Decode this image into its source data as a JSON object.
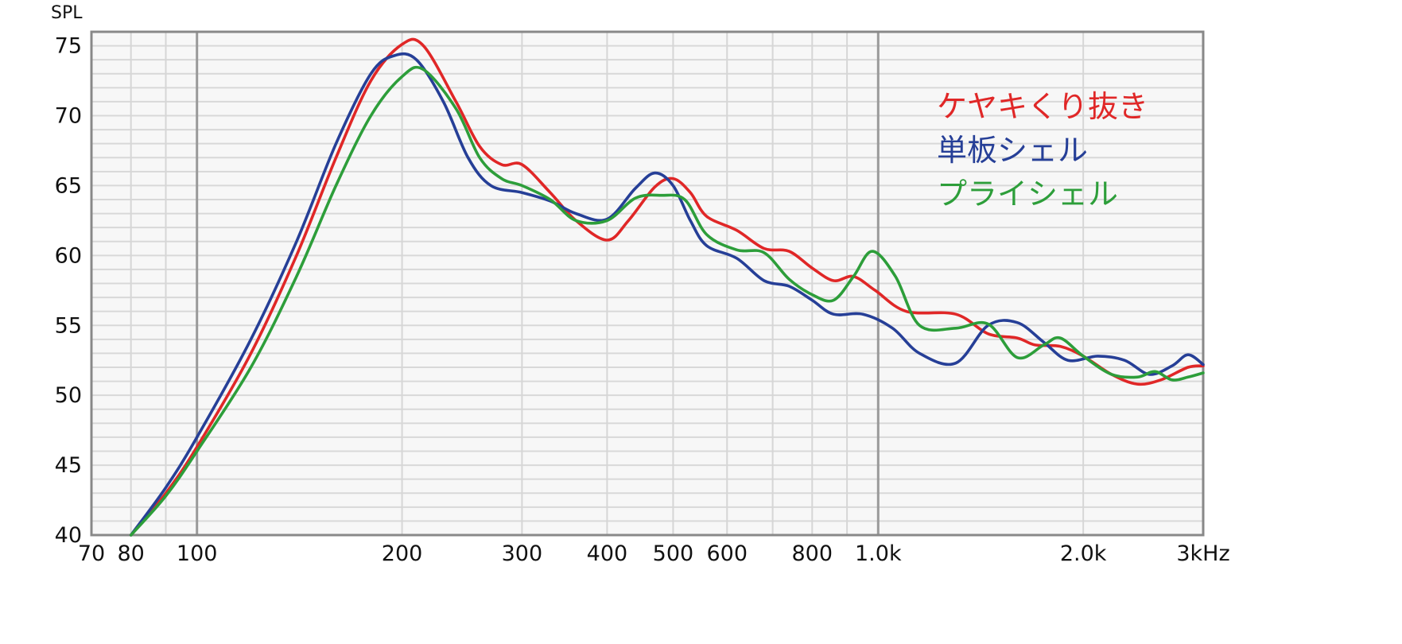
{
  "chart_data": {
    "type": "line",
    "ylabel": "SPL",
    "x_scale": "log",
    "xlim": [
      70,
      3000
    ],
    "ylim": [
      40,
      76
    ],
    "grid": true,
    "legend_position": "top-right",
    "x_ticks": [
      {
        "value": 70,
        "label": "70"
      },
      {
        "value": 80,
        "label": "80"
      },
      {
        "value": 100,
        "label": "100"
      },
      {
        "value": 200,
        "label": "200"
      },
      {
        "value": 300,
        "label": "300"
      },
      {
        "value": 400,
        "label": "400"
      },
      {
        "value": 500,
        "label": "500"
      },
      {
        "value": 600,
        "label": "600"
      },
      {
        "value": 800,
        "label": "800"
      },
      {
        "value": 1000,
        "label": "1.0k"
      },
      {
        "value": 2000,
        "label": "2.0k"
      },
      {
        "value": 3000,
        "label": "3kHz"
      }
    ],
    "y_ticks": [
      {
        "value": 40,
        "label": "40"
      },
      {
        "value": 45,
        "label": "45"
      },
      {
        "value": 50,
        "label": "50"
      },
      {
        "value": 55,
        "label": "55"
      },
      {
        "value": 60,
        "label": "60"
      },
      {
        "value": 65,
        "label": "65"
      },
      {
        "value": 70,
        "label": "70"
      },
      {
        "value": 75,
        "label": "75"
      }
    ],
    "series": [
      {
        "name": "ケヤキくり抜き",
        "color": "#e02727",
        "points": [
          [
            80,
            40
          ],
          [
            90,
            43
          ],
          [
            100,
            46.3
          ],
          [
            120,
            53
          ],
          [
            140,
            60
          ],
          [
            160,
            67
          ],
          [
            180,
            72.5
          ],
          [
            200,
            75.1
          ],
          [
            215,
            75
          ],
          [
            240,
            71
          ],
          [
            260,
            67.8
          ],
          [
            280,
            66.5
          ],
          [
            300,
            66.5
          ],
          [
            330,
            64.5
          ],
          [
            360,
            62.5
          ],
          [
            400,
            61.1
          ],
          [
            430,
            62.5
          ],
          [
            470,
            64.9
          ],
          [
            500,
            65.5
          ],
          [
            530,
            64.5
          ],
          [
            560,
            62.8
          ],
          [
            620,
            61.8
          ],
          [
            680,
            60.5
          ],
          [
            740,
            60.3
          ],
          [
            800,
            59.1
          ],
          [
            860,
            58.2
          ],
          [
            920,
            58.5
          ],
          [
            990,
            57.5
          ],
          [
            1100,
            56
          ],
          [
            1300,
            55.8
          ],
          [
            1450,
            54.4
          ],
          [
            1600,
            54.1
          ],
          [
            1700,
            53.6
          ],
          [
            1850,
            53.5
          ],
          [
            2000,
            52.8
          ],
          [
            2200,
            51.5
          ],
          [
            2400,
            50.8
          ],
          [
            2600,
            51.1
          ],
          [
            2850,
            52
          ],
          [
            3000,
            52.1
          ]
        ]
      },
      {
        "name": "単板シェル",
        "color": "#263f97",
        "points": [
          [
            80,
            40
          ],
          [
            90,
            43.4
          ],
          [
            100,
            47
          ],
          [
            120,
            54
          ],
          [
            140,
            61
          ],
          [
            160,
            68
          ],
          [
            180,
            73
          ],
          [
            195,
            74.3
          ],
          [
            210,
            74
          ],
          [
            230,
            71
          ],
          [
            250,
            67
          ],
          [
            270,
            65
          ],
          [
            300,
            64.5
          ],
          [
            330,
            63.9
          ],
          [
            360,
            63
          ],
          [
            400,
            62.6
          ],
          [
            440,
            64.8
          ],
          [
            470,
            65.9
          ],
          [
            500,
            65
          ],
          [
            530,
            62.5
          ],
          [
            560,
            60.7
          ],
          [
            620,
            59.8
          ],
          [
            680,
            58.2
          ],
          [
            740,
            57.8
          ],
          [
            800,
            56.8
          ],
          [
            860,
            55.8
          ],
          [
            950,
            55.8
          ],
          [
            1050,
            54.8
          ],
          [
            1150,
            53
          ],
          [
            1300,
            52.3
          ],
          [
            1450,
            55
          ],
          [
            1600,
            55.2
          ],
          [
            1750,
            53.8
          ],
          [
            1900,
            52.5
          ],
          [
            2100,
            52.8
          ],
          [
            2300,
            52.5
          ],
          [
            2500,
            51.5
          ],
          [
            2700,
            52.1
          ],
          [
            2850,
            52.9
          ],
          [
            3000,
            52.2
          ]
        ]
      },
      {
        "name": "プライシェル",
        "color": "#2d9e3a",
        "points": [
          [
            80,
            40
          ],
          [
            90,
            42.8
          ],
          [
            100,
            46
          ],
          [
            120,
            52
          ],
          [
            140,
            58.5
          ],
          [
            160,
            65
          ],
          [
            180,
            70
          ],
          [
            200,
            72.8
          ],
          [
            215,
            73.3
          ],
          [
            240,
            70.5
          ],
          [
            260,
            67
          ],
          [
            280,
            65.5
          ],
          [
            300,
            65
          ],
          [
            330,
            64
          ],
          [
            360,
            62.5
          ],
          [
            400,
            62.5
          ],
          [
            440,
            64.1
          ],
          [
            480,
            64.3
          ],
          [
            520,
            64
          ],
          [
            560,
            61.5
          ],
          [
            620,
            60.4
          ],
          [
            680,
            60.2
          ],
          [
            740,
            58.3
          ],
          [
            800,
            57.2
          ],
          [
            860,
            56.8
          ],
          [
            920,
            58.5
          ],
          [
            980,
            60.3
          ],
          [
            1060,
            58.5
          ],
          [
            1150,
            55
          ],
          [
            1300,
            54.8
          ],
          [
            1450,
            55.1
          ],
          [
            1600,
            52.7
          ],
          [
            1750,
            53.6
          ],
          [
            1850,
            54.1
          ],
          [
            2000,
            52.8
          ],
          [
            2200,
            51.5
          ],
          [
            2400,
            51.3
          ],
          [
            2550,
            51.7
          ],
          [
            2700,
            51.1
          ],
          [
            2850,
            51.3
          ],
          [
            3000,
            51.6
          ]
        ]
      }
    ]
  }
}
